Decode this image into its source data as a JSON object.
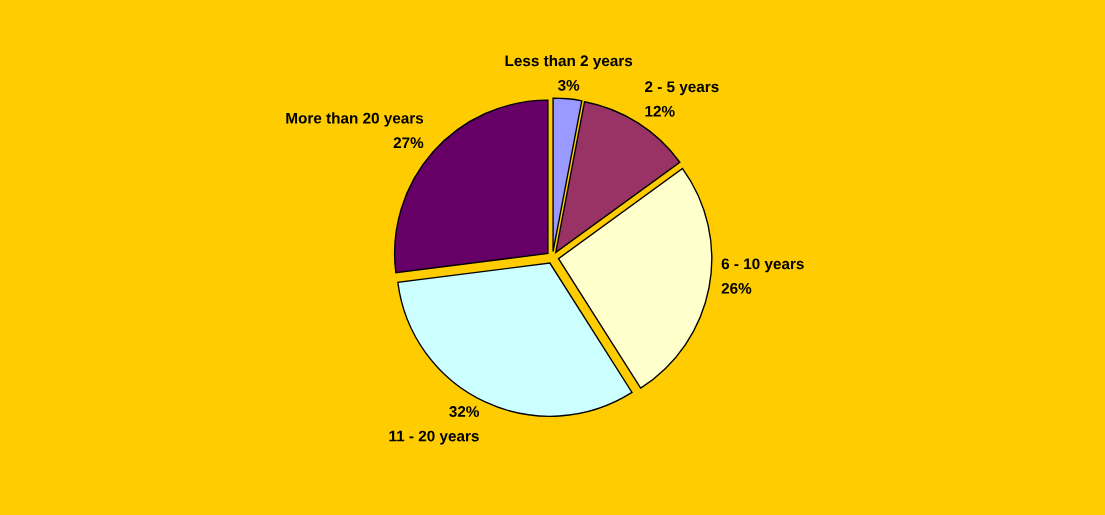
{
  "chart_data": {
    "type": "pie",
    "categories": [
      "Less than 2 years",
      "2 - 5 years",
      "6 - 10 years",
      "11 - 20 years",
      "More than 20 years"
    ],
    "values": [
      3,
      12,
      26,
      32,
      27
    ],
    "value_labels": [
      "3%",
      "12%",
      "26%",
      "32%",
      "27%"
    ],
    "colors": [
      "#9999ff",
      "#993366",
      "#ffffcc",
      "#ccffff",
      "#660066"
    ],
    "legend": false
  }
}
